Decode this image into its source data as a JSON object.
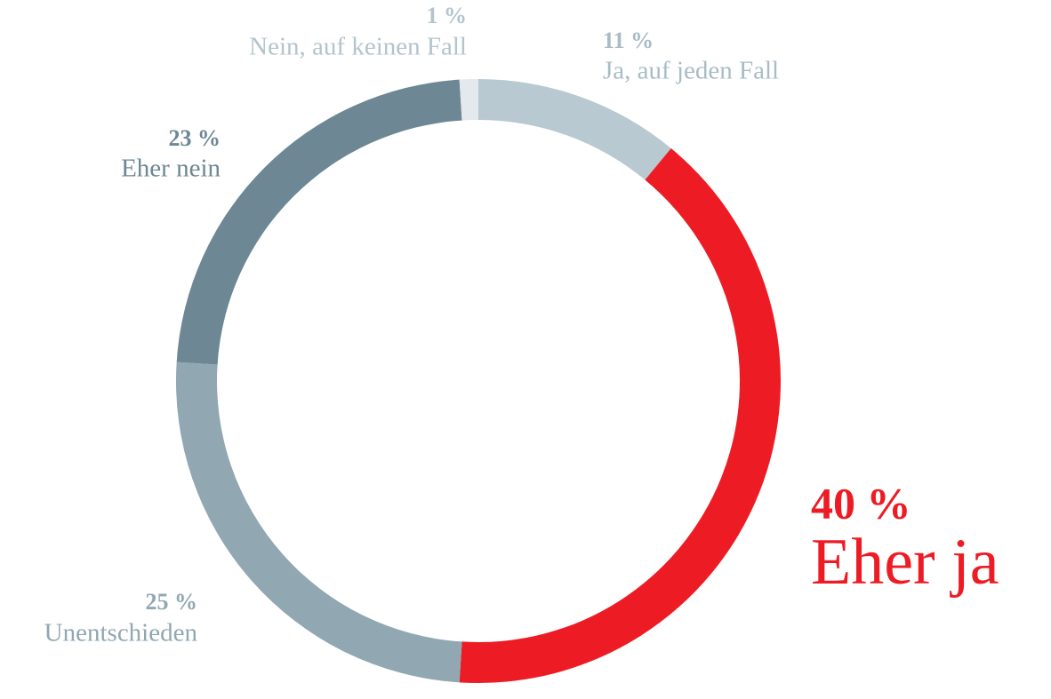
{
  "chart_data": {
    "type": "donut",
    "categories": [
      "Ja, auf jeden Fall",
      "Eher ja",
      "Unentschieden",
      "Eher nein",
      "Nein, auf keinen Fall"
    ],
    "values": [
      11,
      40,
      25,
      23,
      1
    ],
    "value_labels": [
      "11 %",
      "40 %",
      "25 %",
      "23 %",
      "1 %"
    ],
    "colors": [
      "#b8c9d1",
      "#ed1c24",
      "#91a7b2",
      "#6d8795",
      "#e4e9ee"
    ],
    "label_colors": [
      "#a9bcc6",
      "#ed1c24",
      "#91a7b2",
      "#6d8795",
      "#b4c4cc"
    ]
  }
}
